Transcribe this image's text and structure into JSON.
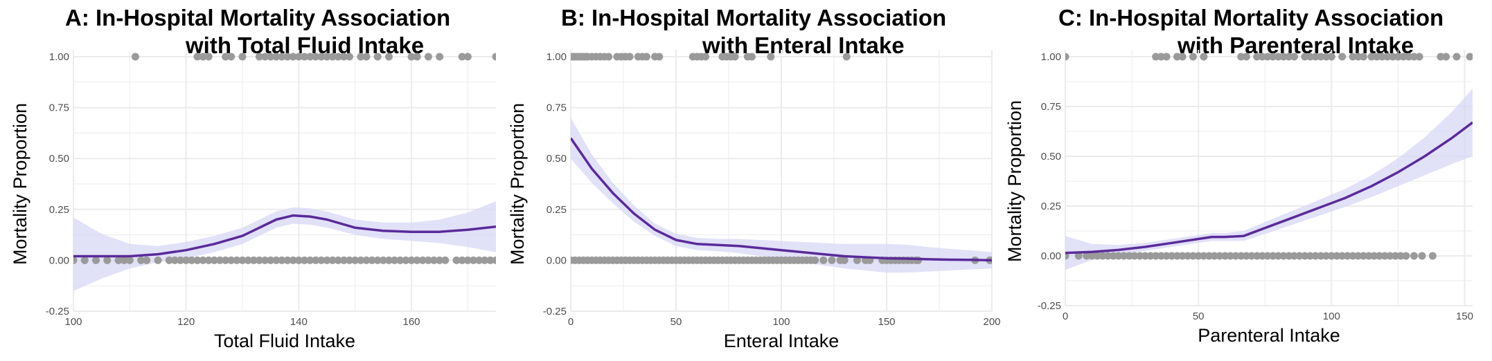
{
  "colors": {
    "curve": "#5b2a9a",
    "band": "#d7d7f5",
    "points": "#9a9a9a",
    "grid": "#ebebeb"
  },
  "chart_data": [
    {
      "type": "scatter",
      "title_line1": "A: In-Hospital Mortality Association",
      "title_line2": "with Total Fluid Intake",
      "xlabel": "Total Fluid Intake",
      "ylabel": "Mortality Proportion",
      "xlim": [
        100,
        175
      ],
      "ylim": [
        -0.25,
        1.0
      ],
      "xticks": [
        100,
        120,
        140,
        160
      ],
      "xtick_labels": [
        "100",
        "120",
        "140",
        "160"
      ],
      "yticks": [
        -0.25,
        0,
        0.25,
        0.5,
        0.75,
        1.0
      ],
      "ytick_labels": [
        "-0.25",
        "0.00",
        "0.25",
        "0.50",
        "0.75",
        "1.00"
      ],
      "grid": true,
      "points_died_x": [
        111,
        122,
        123,
        124,
        127,
        128,
        130,
        133,
        134,
        135,
        136,
        137,
        138,
        139,
        140,
        141,
        142,
        143,
        144,
        145,
        146,
        147,
        148,
        149,
        151,
        152,
        154,
        156,
        160,
        161,
        163,
        165,
        169,
        170,
        175
      ],
      "points_survived_x": [
        100,
        102,
        104,
        106,
        108,
        109,
        110,
        112,
        113,
        115,
        117,
        118,
        119,
        120,
        121,
        122,
        123,
        124,
        125,
        126,
        127,
        128,
        129,
        130,
        131,
        132,
        133,
        134,
        135,
        136,
        137,
        138,
        139,
        140,
        141,
        142,
        143,
        144,
        145,
        146,
        147,
        148,
        149,
        150,
        151,
        152,
        153,
        154,
        155,
        156,
        157,
        158,
        159,
        160,
        161,
        162,
        163,
        164,
        165,
        166,
        168,
        169,
        170,
        171,
        172,
        173,
        174,
        175
      ],
      "smooth_fit": {
        "x": [
          100,
          105,
          110,
          115,
          120,
          125,
          130,
          133,
          136,
          139,
          142,
          145,
          150,
          155,
          160,
          165,
          170,
          175
        ],
        "y": [
          0.02,
          0.02,
          0.02,
          0.03,
          0.05,
          0.08,
          0.12,
          0.16,
          0.2,
          0.22,
          0.215,
          0.2,
          0.16,
          0.145,
          0.14,
          0.14,
          0.15,
          0.165
        ],
        "lower": [
          -0.15,
          -0.09,
          -0.04,
          -0.01,
          0.01,
          0.04,
          0.08,
          0.12,
          0.16,
          0.18,
          0.175,
          0.16,
          0.125,
          0.105,
          0.095,
          0.085,
          0.065,
          0.04
        ],
        "upper": [
          0.21,
          0.13,
          0.08,
          0.07,
          0.09,
          0.12,
          0.16,
          0.2,
          0.24,
          0.26,
          0.255,
          0.24,
          0.2,
          0.185,
          0.185,
          0.2,
          0.235,
          0.29
        ]
      }
    },
    {
      "type": "scatter",
      "title_line1": "B: In-Hospital Mortality Association",
      "title_line2": "with Enteral  Intake",
      "xlabel": "Enteral Intake",
      "ylabel": "Mortality Proportion",
      "xlim": [
        0,
        200
      ],
      "ylim": [
        -0.25,
        1.0
      ],
      "xticks": [
        0,
        50,
        100,
        150,
        200
      ],
      "xtick_labels": [
        "0",
        "50",
        "100",
        "150",
        "200"
      ],
      "yticks": [
        -0.25,
        0,
        0.25,
        0.5,
        0.75,
        1.0
      ],
      "ytick_labels": [
        "-0.25",
        "0.00",
        "0.25",
        "0.50",
        "0.75",
        "1.00"
      ],
      "grid": true,
      "points_died_x": [
        0,
        1,
        2,
        3,
        4,
        5,
        6,
        7,
        8,
        10,
        12,
        14,
        16,
        18,
        22,
        24,
        26,
        28,
        32,
        34,
        36,
        40,
        42,
        58,
        60,
        62,
        64,
        72,
        74,
        76,
        78,
        84,
        86,
        95,
        131
      ],
      "points_survived_x": [
        0,
        2,
        4,
        6,
        8,
        10,
        12,
        14,
        16,
        18,
        20,
        22,
        24,
        26,
        28,
        30,
        32,
        34,
        36,
        38,
        40,
        42,
        44,
        46,
        48,
        50,
        52,
        54,
        56,
        58,
        60,
        62,
        64,
        66,
        68,
        70,
        72,
        74,
        76,
        78,
        80,
        82,
        84,
        86,
        88,
        90,
        92,
        94,
        96,
        98,
        100,
        102,
        104,
        106,
        108,
        110,
        112,
        114,
        116,
        120,
        124,
        128,
        130,
        136,
        140,
        142,
        148,
        150,
        152,
        154,
        156,
        158,
        160,
        162,
        164,
        165,
        192,
        199,
        200
      ],
      "smooth_fit": {
        "x": [
          0,
          10,
          20,
          30,
          40,
          50,
          60,
          70,
          80,
          90,
          100,
          110,
          120,
          130,
          140,
          150,
          160,
          170,
          180,
          190,
          200
        ],
        "y": [
          0.6,
          0.45,
          0.33,
          0.23,
          0.15,
          0.1,
          0.08,
          0.075,
          0.07,
          0.06,
          0.05,
          0.04,
          0.03,
          0.02,
          0.015,
          0.01,
          0.008,
          0.005,
          0.003,
          0.002,
          0.0
        ],
        "lower": [
          0.5,
          0.38,
          0.28,
          0.19,
          0.12,
          0.07,
          0.05,
          0.045,
          0.035,
          0.02,
          0.005,
          -0.01,
          -0.025,
          -0.04,
          -0.05,
          -0.06,
          -0.06,
          -0.055,
          -0.05,
          -0.045,
          -0.04
        ],
        "upper": [
          0.7,
          0.52,
          0.38,
          0.27,
          0.18,
          0.13,
          0.11,
          0.105,
          0.105,
          0.1,
          0.095,
          0.09,
          0.085,
          0.08,
          0.08,
          0.08,
          0.076,
          0.065,
          0.056,
          0.049,
          0.04
        ]
      }
    },
    {
      "type": "scatter",
      "title_line1": "C: In-Hospital Mortality Association",
      "title_line2": "with Parenteral Intake",
      "xlabel": "Parenteral  Intake",
      "ylabel": "Mortality Proportion",
      "xlim": [
        0,
        153
      ],
      "ylim": [
        -0.25,
        1.0
      ],
      "xticks": [
        0,
        50,
        100,
        150
      ],
      "xtick_labels": [
        "0",
        "50",
        "100",
        "150"
      ],
      "yticks": [
        -0.25,
        0,
        0.25,
        0.5,
        0.75,
        1.0
      ],
      "ytick_labels": [
        "-0.25",
        "0.00",
        "0.25",
        "0.50",
        "0.75",
        "1.00"
      ],
      "grid": true,
      "points_died_x": [
        0,
        34,
        36,
        38,
        42,
        44,
        48,
        52,
        66,
        68,
        72,
        74,
        76,
        78,
        80,
        82,
        84,
        86,
        90,
        92,
        94,
        96,
        98,
        100,
        104,
        108,
        110,
        112,
        115,
        117,
        119,
        121,
        123,
        125,
        127,
        129,
        131,
        133,
        141,
        143,
        147,
        152
      ],
      "points_survived_x": [
        0,
        5,
        8,
        10,
        12,
        14,
        16,
        18,
        20,
        22,
        24,
        26,
        28,
        30,
        32,
        34,
        36,
        38,
        40,
        42,
        44,
        46,
        48,
        50,
        52,
        54,
        56,
        58,
        60,
        62,
        64,
        66,
        68,
        70,
        72,
        74,
        76,
        78,
        80,
        82,
        84,
        86,
        88,
        90,
        92,
        94,
        96,
        98,
        100,
        102,
        104,
        106,
        108,
        110,
        112,
        114,
        116,
        118,
        120,
        122,
        124,
        126,
        128,
        131,
        134,
        138
      ],
      "smooth_fit": {
        "x": [
          0,
          10,
          20,
          30,
          40,
          50,
          55,
          60,
          67,
          75,
          85,
          95,
          105,
          115,
          125,
          135,
          145,
          153
        ],
        "y": [
          0.015,
          0.02,
          0.03,
          0.045,
          0.065,
          0.085,
          0.095,
          0.095,
          0.1,
          0.14,
          0.19,
          0.24,
          0.29,
          0.35,
          0.42,
          0.5,
          0.59,
          0.67
        ],
        "lower": [
          -0.07,
          -0.02,
          0.005,
          0.025,
          0.045,
          0.065,
          0.075,
          0.075,
          0.075,
          0.11,
          0.155,
          0.2,
          0.245,
          0.295,
          0.35,
          0.405,
          0.46,
          0.5
        ],
        "upper": [
          0.1,
          0.06,
          0.055,
          0.065,
          0.085,
          0.105,
          0.115,
          0.115,
          0.125,
          0.17,
          0.225,
          0.28,
          0.335,
          0.405,
          0.49,
          0.595,
          0.72,
          0.84
        ]
      }
    }
  ]
}
